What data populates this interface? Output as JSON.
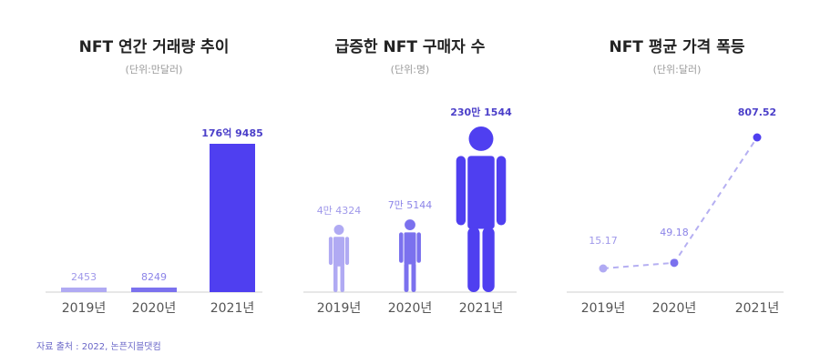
{
  "colors": {
    "light": "#b0aaf3",
    "mid": "#7b71ee",
    "dark": "#4f3ff0",
    "label_light": "#9f98ea",
    "label_mid": "#8c84e8",
    "label_dark": "#4b3fc9",
    "axis": "#cfcfcf",
    "dashed": "#b5aff2"
  },
  "source": "자료 출처 : 2022, 논픈지블댓컴",
  "chart_data": [
    {
      "type": "bar",
      "title": "NFT 연간 거래량 추이",
      "unit": "(단위:만달러)",
      "categories": [
        "2019년",
        "2020년",
        "2021년"
      ],
      "values": [
        2453,
        8249,
        1769485
      ],
      "value_labels": [
        "2453",
        "8249",
        "176억 9485"
      ],
      "grid": false
    },
    {
      "type": "pictogram",
      "title": "급증한 NFT 구매자 수",
      "unit": "(단위:명)",
      "icon": "person-icon",
      "categories": [
        "2019년",
        "2020년",
        "2021년"
      ],
      "values": [
        44324,
        75144,
        2301544
      ],
      "value_labels": [
        "4만 4324",
        "7만 5144",
        "230만 1544"
      ],
      "grid": false
    },
    {
      "type": "line",
      "title": "NFT 평균 가격 폭등",
      "unit": "(단위:달러)",
      "categories": [
        "2019년",
        "2020년",
        "2021년"
      ],
      "values": [
        15.17,
        49.18,
        807.52
      ],
      "value_labels": [
        "15.17",
        "49.18",
        "807.52"
      ],
      "line_style": "dashed",
      "grid": false
    }
  ]
}
